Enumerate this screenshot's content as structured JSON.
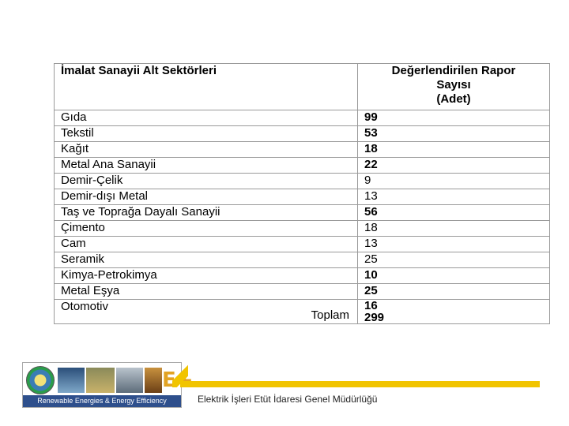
{
  "table": {
    "header": {
      "col1": "İmalat Sanayii Alt Sektörleri",
      "col2_lines": [
        "Değerlendirilen Rapor",
        "Sayısı",
        "(Adet)"
      ]
    },
    "rows": [
      {
        "label": "Gıda",
        "value": "99",
        "kind": "main"
      },
      {
        "label": "Tekstil",
        "value": "53",
        "kind": "main"
      },
      {
        "label": "Kağıt",
        "value": "18",
        "kind": "main"
      },
      {
        "label": "Metal Ana Sanayii",
        "value": "22",
        "kind": "main"
      },
      {
        "label": "Demir-Çelik",
        "value": "9",
        "kind": "sub"
      },
      {
        "label": "Demir-dışı Metal",
        "value": "13",
        "kind": "sub"
      },
      {
        "label": "Taş ve Toprağa Dayalı Sanayii",
        "value": "56",
        "kind": "main"
      },
      {
        "label": "Çimento",
        "value": "18",
        "kind": "sub"
      },
      {
        "label": "Cam",
        "value": "13",
        "kind": "sub"
      },
      {
        "label": "Seramik",
        "value": "25",
        "kind": "sub"
      },
      {
        "label": "Kimya-Petrokimya",
        "value": "10",
        "kind": "main"
      },
      {
        "label": "Metal Eşya",
        "value": "25",
        "kind": "main"
      }
    ],
    "last": {
      "label": "Otomotiv",
      "value": "16",
      "total_label": "Toplam",
      "total_value": "299"
    }
  },
  "footer": {
    "banner_text": "Renewable Energies & Energy Efficiency",
    "logo_mark": "E+",
    "organization": "Elektrik İşleri Etüt İdaresi Genel Müdürlüğü",
    "accent_color": "#f1c400",
    "banner_color": "#2e4f8c"
  }
}
